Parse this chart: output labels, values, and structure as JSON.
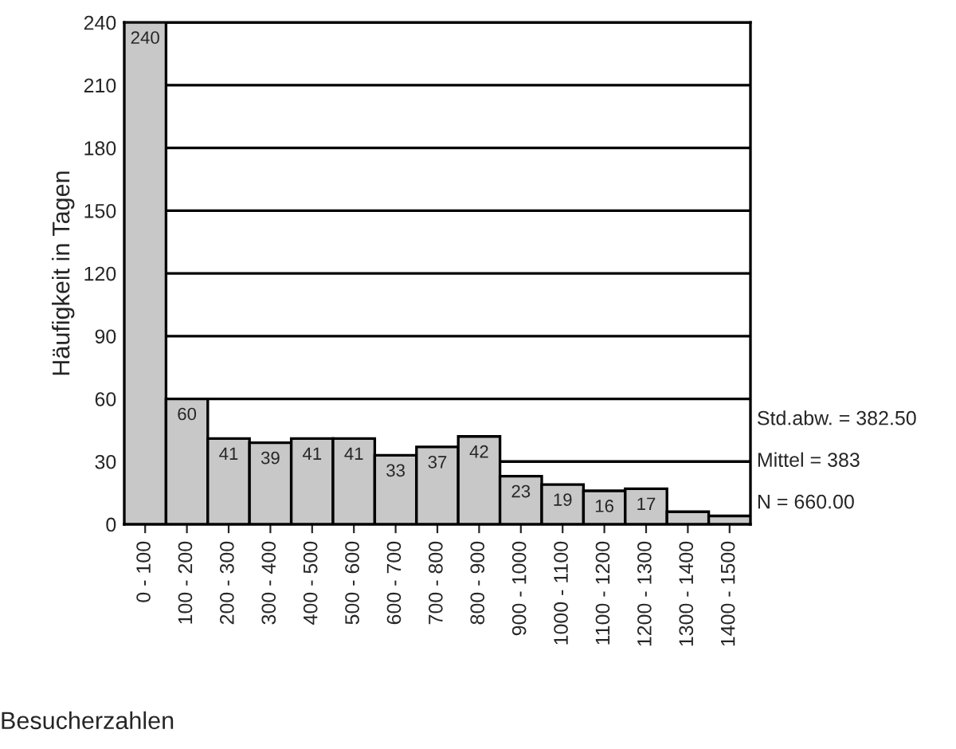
{
  "chart_data": {
    "type": "bar",
    "xlabel": "Besucherzahlen",
    "ylabel": "Häufigkeit in Tagen",
    "categories": [
      "0 - 100",
      "100 - 200",
      "200 - 300",
      "300 - 400",
      "400 - 500",
      "500 - 600",
      "600 - 700",
      "700 - 800",
      "800 - 900",
      "900 - 1000",
      "1000 - 1100",
      "1100 - 1200",
      "1200 - 1300",
      "1300 - 1400",
      "1400 - 1500"
    ],
    "values": [
      240,
      60,
      41,
      39,
      41,
      41,
      33,
      37,
      42,
      23,
      19,
      16,
      17,
      6,
      4
    ],
    "value_labels": [
      "240",
      "60",
      "41",
      "39",
      "41",
      "41",
      "33",
      "37",
      "42",
      "23",
      "19",
      "16",
      "17",
      null,
      null
    ],
    "color": "#c8c8c8",
    "ylim": [
      0,
      240
    ],
    "yticks": [
      0,
      30,
      60,
      90,
      120,
      150,
      180,
      210,
      240
    ],
    "grid": "y",
    "legend": false,
    "annotations": [
      "Std.abw. = 382.50",
      "Mittel = 383",
      "N = 660.00"
    ]
  }
}
